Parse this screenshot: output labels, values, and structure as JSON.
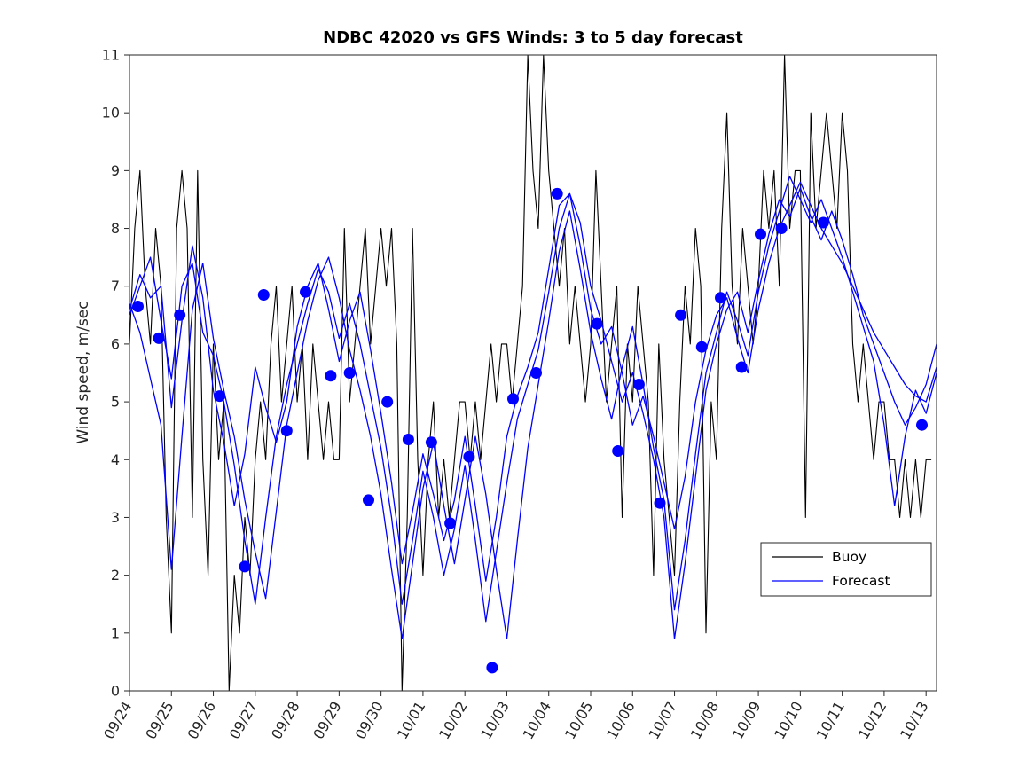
{
  "chart_data": {
    "type": "line",
    "title": "NDBC 42020 vs GFS Winds: 3 to 5 day forecast",
    "xlabel": "",
    "ylabel": "Wind speed, m/sec",
    "ylim": [
      0,
      11
    ],
    "xlim": [
      0,
      19.25
    ],
    "grid": false,
    "axis_color": "#262626",
    "x_ticks": [
      0,
      1,
      2,
      3,
      4,
      5,
      6,
      7,
      8,
      9,
      10,
      11,
      12,
      13,
      14,
      15,
      16,
      17,
      18,
      19
    ],
    "x_tick_labels": [
      "09/24",
      "09/25",
      "09/26",
      "09/27",
      "09/28",
      "09/29",
      "09/30",
      "10/01",
      "10/02",
      "10/03",
      "10/04",
      "10/05",
      "10/06",
      "10/07",
      "10/08",
      "10/09",
      "10/10",
      "10/11",
      "10/12",
      "10/13"
    ],
    "y_ticks": [
      0,
      1,
      2,
      3,
      4,
      5,
      6,
      7,
      8,
      9,
      10,
      11
    ],
    "legend": {
      "position": "inside lower right",
      "entries": [
        {
          "label": "Buoy",
          "color": "#000000"
        },
        {
          "label": "Forecast",
          "color": "#0000ff"
        }
      ]
    },
    "series": [
      {
        "name": "Buoy",
        "color": "#000000",
        "width": 1.1,
        "t0": 0,
        "dt": 0.125,
        "values": [
          6,
          8,
          9,
          7,
          6,
          8,
          7,
          3,
          1,
          8,
          9,
          8,
          3,
          9,
          4,
          2,
          6,
          4,
          5,
          0,
          2,
          1,
          3,
          2,
          4,
          5,
          4,
          6,
          7,
          5,
          6,
          7,
          5,
          6,
          4,
          6,
          5,
          4,
          5,
          4,
          4,
          8,
          5,
          6,
          7,
          8,
          6,
          7,
          8,
          7,
          8,
          6,
          0,
          3,
          8,
          4,
          2,
          4,
          5,
          3,
          4,
          3,
          4,
          5,
          5,
          4,
          5,
          4,
          5,
          6,
          5,
          6,
          6,
          5,
          6,
          7,
          11,
          9,
          8,
          11,
          9,
          8,
          7,
          8,
          6,
          7,
          6,
          5,
          6,
          9,
          7,
          5,
          6,
          7,
          3,
          6,
          5,
          7,
          6,
          5,
          2,
          6,
          4,
          3,
          2,
          5,
          7,
          6,
          8,
          7,
          1,
          5,
          4,
          8,
          10,
          7,
          6,
          8,
          7,
          6,
          7,
          9,
          8,
          9,
          7,
          11,
          8,
          9,
          9,
          3,
          10,
          8,
          9,
          10,
          9,
          8,
          10,
          9,
          6,
          5,
          6,
          5,
          4,
          5,
          5,
          4,
          4,
          3,
          4,
          3,
          4,
          3,
          4,
          4
        ]
      },
      {
        "name": "Forecast",
        "color": "#0000ff",
        "width": 1.3,
        "t0": 0,
        "dt": 0.25,
        "values": [
          6.6,
          7.2,
          6.8,
          7.0,
          4.9,
          6.4,
          7.7,
          6.8,
          5.2,
          4.3,
          3.2,
          4.1,
          5.6,
          4.9,
          4.3,
          5.0,
          6.3,
          7.0,
          7.4,
          6.6,
          5.7,
          6.4,
          6.9,
          5.9,
          4.8,
          3.6,
          2.2,
          3.1,
          4.1,
          3.4,
          2.6,
          3.3,
          4.4,
          3.2,
          1.9,
          3.0,
          4.4,
          5.1,
          5.6,
          6.2,
          7.3,
          8.4,
          8.6,
          7.7,
          6.6,
          6.0,
          6.3,
          5.5,
          4.6,
          5.1,
          4.4,
          3.6,
          2.8,
          3.7,
          5.0,
          5.9,
          6.5,
          6.8,
          6.1,
          5.5,
          6.6,
          7.4,
          8.0,
          8.4,
          8.8,
          8.4,
          8.0,
          7.7,
          7.4,
          7.0,
          6.6,
          6.2,
          5.9,
          5.6,
          5.3,
          5.1,
          5.0,
          5.6
        ]
      },
      {
        "name": "Forecast",
        "color": "#0000ff",
        "width": 1.3,
        "t0": 0,
        "dt": 0.25,
        "values": [
          6.7,
          6.2,
          5.4,
          4.6,
          2.1,
          4.4,
          6.6,
          7.4,
          6.1,
          5.2,
          4.4,
          3.3,
          2.4,
          1.6,
          3.1,
          4.6,
          5.5,
          6.4,
          7.1,
          7.5,
          6.8,
          5.9,
          5.2,
          4.4,
          3.4,
          2.1,
          0.9,
          2.2,
          3.5,
          4.3,
          3.2,
          2.2,
          3.3,
          4.4,
          3.4,
          2.1,
          0.9,
          2.6,
          4.2,
          5.3,
          6.4,
          7.6,
          8.3,
          7.3,
          6.2,
          5.4,
          4.7,
          5.6,
          6.3,
          5.3,
          4.2,
          3.3,
          1.4,
          2.6,
          4.1,
          5.5,
          6.2,
          6.9,
          6.4,
          5.8,
          6.9,
          7.7,
          8.3,
          8.9,
          8.5,
          8.1,
          8.5,
          8.0,
          7.5,
          6.9,
          6.3,
          5.7,
          4.6,
          3.2,
          4.4,
          5.2,
          4.8,
          5.5
        ]
      },
      {
        "name": "Forecast",
        "color": "#0000ff",
        "width": 1.3,
        "t0": 0,
        "dt": 0.25,
        "values": [
          6.5,
          7.0,
          7.5,
          6.4,
          5.4,
          7.0,
          7.4,
          6.2,
          5.8,
          5.0,
          3.9,
          2.6,
          1.5,
          3.0,
          4.4,
          5.3,
          6.0,
          6.7,
          7.3,
          6.9,
          6.1,
          6.7,
          6.0,
          5.1,
          4.2,
          3.0,
          1.5,
          2.6,
          3.8,
          3.0,
          2.0,
          2.8,
          3.9,
          2.6,
          1.2,
          2.4,
          3.6,
          4.7,
          5.3,
          5.9,
          6.9,
          8.0,
          8.6,
          8.1,
          7.0,
          6.4,
          5.7,
          5.0,
          5.5,
          4.8,
          4.0,
          3.0,
          0.9,
          2.2,
          3.7,
          5.2,
          6.0,
          6.6,
          6.9,
          6.2,
          7.1,
          7.9,
          8.5,
          8.2,
          8.7,
          8.2,
          7.8,
          8.3,
          7.8,
          7.2,
          6.5,
          6.0,
          5.5,
          5.0,
          4.6,
          4.9,
          5.3,
          6.0
        ]
      }
    ],
    "markers": {
      "name": "Forecast",
      "color": "#0000ff",
      "radius": 6.5,
      "points": [
        [
          0.2,
          6.65
        ],
        [
          0.7,
          6.1
        ],
        [
          1.2,
          6.5
        ],
        [
          2.15,
          5.1
        ],
        [
          2.75,
          2.15
        ],
        [
          3.2,
          6.85
        ],
        [
          3.75,
          4.5
        ],
        [
          4.2,
          6.9
        ],
        [
          4.8,
          5.45
        ],
        [
          5.25,
          5.5
        ],
        [
          5.7,
          3.3
        ],
        [
          6.15,
          5.0
        ],
        [
          6.65,
          4.35
        ],
        [
          7.2,
          4.3
        ],
        [
          7.65,
          2.9
        ],
        [
          8.1,
          4.05
        ],
        [
          8.65,
          0.4
        ],
        [
          9.15,
          5.05
        ],
        [
          9.7,
          5.5
        ],
        [
          10.2,
          8.6
        ],
        [
          11.15,
          6.35
        ],
        [
          11.65,
          4.15
        ],
        [
          12.15,
          5.3
        ],
        [
          12.65,
          3.25
        ],
        [
          13.15,
          6.5
        ],
        [
          13.65,
          5.95
        ],
        [
          14.1,
          6.8
        ],
        [
          14.6,
          5.6
        ],
        [
          15.05,
          7.9
        ],
        [
          15.55,
          8.0
        ],
        [
          16.55,
          8.1
        ],
        [
          18.9,
          4.6
        ]
      ]
    }
  }
}
